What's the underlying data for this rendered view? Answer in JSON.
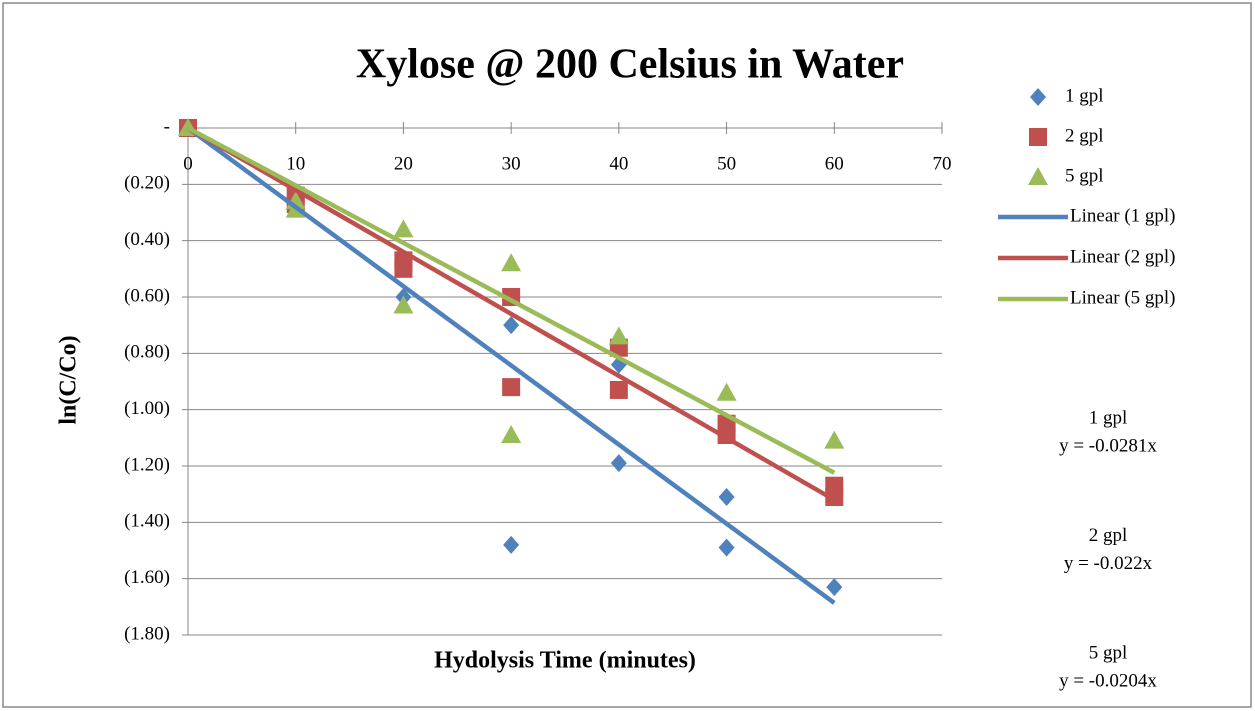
{
  "chart_data": {
    "type": "scatter",
    "title": "Xylose @ 200 Celsius in Water",
    "xlabel": "Hydolysis Time (minutes)",
    "ylabel": "ln(C/Co)",
    "xlim": [
      0,
      70
    ],
    "xticks": [
      0,
      10,
      20,
      30,
      40,
      50,
      60,
      70
    ],
    "ylim": [
      -1.8,
      0
    ],
    "yticks": [
      {
        "value": 0,
        "label": "-"
      },
      {
        "value": -0.2,
        "label": "(0.20)"
      },
      {
        "value": -0.4,
        "label": "(0.40)"
      },
      {
        "value": -0.6,
        "label": "(0.60)"
      },
      {
        "value": -0.8,
        "label": "(0.80)"
      },
      {
        "value": -1.0,
        "label": "(1.00)"
      },
      {
        "value": -1.2,
        "label": "(1.20)"
      },
      {
        "value": -1.4,
        "label": "(1.40)"
      },
      {
        "value": -1.6,
        "label": "(1.60)"
      },
      {
        "value": -1.8,
        "label": "(1.80)"
      }
    ],
    "grid": true,
    "legend": "right",
    "series": [
      {
        "name": "1 gpl",
        "color": "#4f81bd",
        "marker": "diamond",
        "x": [
          0,
          10,
          20,
          30,
          30,
          40,
          40,
          50,
          50,
          60
        ],
        "values": [
          0,
          -0.26,
          -0.6,
          -0.7,
          -1.48,
          -0.84,
          -1.19,
          -1.31,
          -1.49,
          -1.63
        ],
        "trendline": {
          "name": "Linear (1 gpl)",
          "slope": -0.0281,
          "label": "1 gpl",
          "equation": "y = -0.0281x"
        }
      },
      {
        "name": "2 gpl",
        "color": "#c0504d",
        "marker": "square",
        "x": [
          0,
          10,
          10,
          20,
          20,
          30,
          30,
          40,
          40,
          50,
          50,
          60,
          60
        ],
        "values": [
          0,
          -0.27,
          -0.24,
          -0.47,
          -0.5,
          -0.6,
          -0.92,
          -0.78,
          -0.93,
          -1.05,
          -1.09,
          -1.27,
          -1.31
        ],
        "trendline": {
          "name": "Linear (2 gpl)",
          "slope": -0.022,
          "label": "2 gpl",
          "equation": "y = -0.022x"
        }
      },
      {
        "name": "5 gpl",
        "color": "#9bbb59",
        "marker": "triangle",
        "x": [
          0,
          10,
          10,
          20,
          20,
          30,
          30,
          40,
          50,
          60
        ],
        "values": [
          0,
          -0.26,
          -0.29,
          -0.36,
          -0.63,
          -0.48,
          -1.09,
          -0.74,
          -0.94,
          -1.11
        ],
        "trendline": {
          "name": "Linear (5 gpl)",
          "slope": -0.0204,
          "label": "5 gpl",
          "equation": "y = -0.0204x"
        }
      }
    ]
  }
}
